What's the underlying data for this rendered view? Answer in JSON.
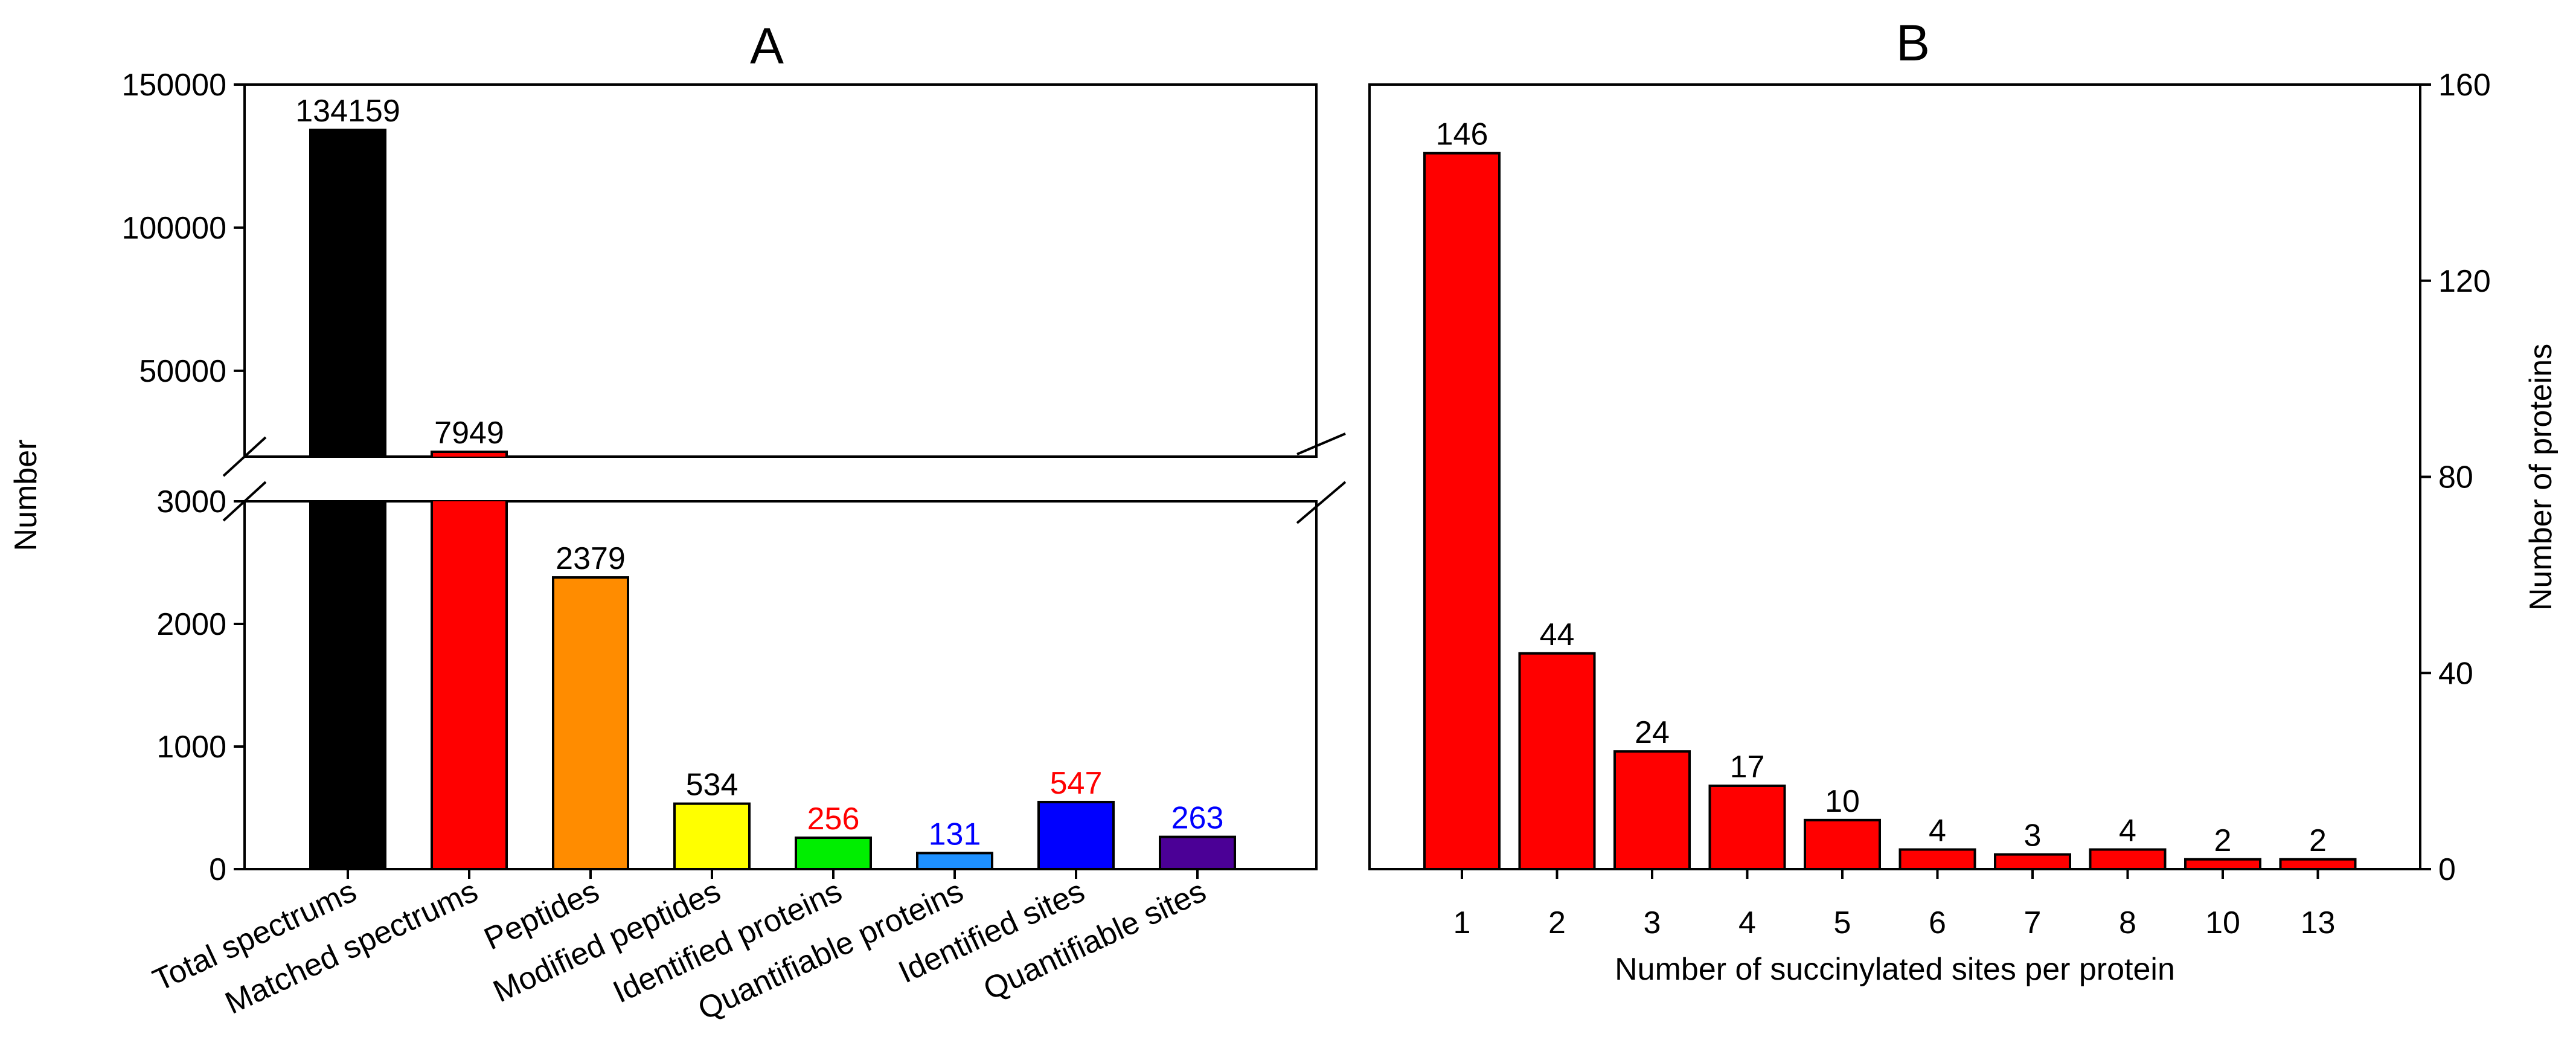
{
  "chart_data": [
    {
      "id": "A",
      "type": "bar",
      "title": "A",
      "xlabel": "",
      "ylabel": "Number",
      "categories": [
        "Total spectrums",
        "Matched spectrums",
        "Peptides",
        "Modified peptides",
        "Identified proteins",
        "Quantifiable proteins",
        "Identified sites",
        "Quantifiable sites"
      ],
      "values": [
        134159,
        7949,
        2379,
        534,
        256,
        131,
        547,
        263
      ],
      "bar_colors": [
        "#000000",
        "#ff0000",
        "#ff8c00",
        "#ffff00",
        "#00ee00",
        "#1e90ff",
        "#0000ff",
        "#4b0096"
      ],
      "label_colors": [
        "#000000",
        "#000000",
        "#000000",
        "#000000",
        "#ff0000",
        "#0000ff",
        "#ff0000",
        "#0000ff"
      ],
      "broken_axis": {
        "lower_range": [
          0,
          3000
        ],
        "lower_ticks": [
          "0",
          "1000",
          "2000",
          "3000"
        ],
        "upper_range": [
          20000,
          150000
        ],
        "upper_ticks": [
          "50000",
          "100000",
          "150000"
        ]
      }
    },
    {
      "id": "B",
      "type": "bar",
      "title": "B",
      "xlabel": "Number of succinylated sites per protein",
      "ylabel": "Number of proteins",
      "categories": [
        "1",
        "2",
        "3",
        "4",
        "5",
        "6",
        "7",
        "8",
        "10",
        "13"
      ],
      "values": [
        146,
        44,
        24,
        17,
        10,
        4,
        3,
        4,
        2,
        2
      ],
      "bar_color": "#ff0000",
      "ylim": [
        0,
        160
      ],
      "yticks": [
        "0",
        "40",
        "80",
        "120",
        "160"
      ],
      "y_axis_side": "right"
    }
  ]
}
